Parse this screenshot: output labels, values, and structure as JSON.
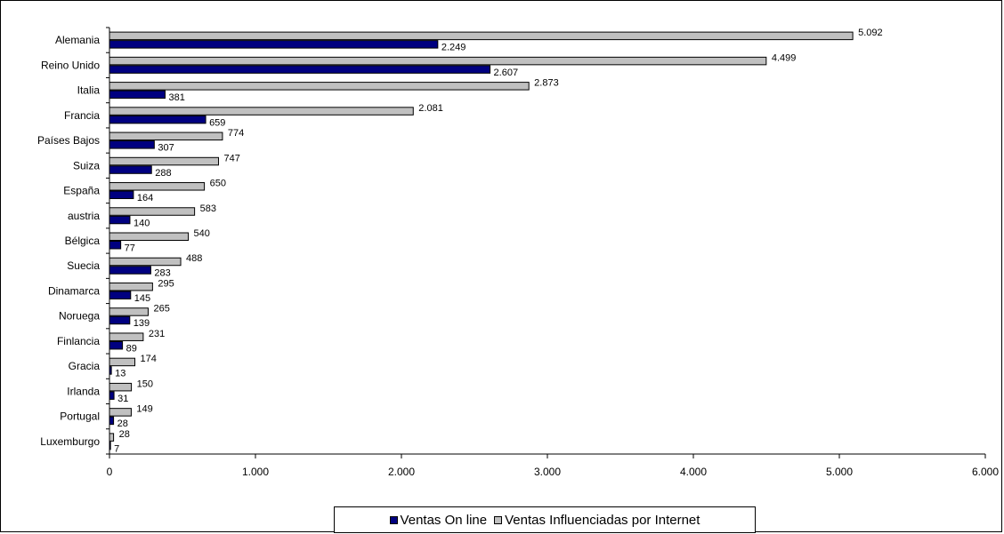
{
  "chart_data": {
    "type": "bar",
    "orientation": "horizontal",
    "categories": [
      "Alemania",
      "Reino Unido",
      "Italia",
      "Francia",
      "Países Bajos",
      "Suiza",
      "España",
      "austria",
      "Bélgica",
      "Suecia",
      "Dinamarca",
      "Noruega",
      "Finlancia",
      "Gracia",
      "Irlanda",
      "Portugal",
      "Luxemburgo"
    ],
    "series": [
      {
        "name": "Ventas Influenciadas por Internet",
        "color": "#c0c0c0",
        "values": [
          5092,
          4499,
          2873,
          2081,
          774,
          747,
          650,
          583,
          540,
          488,
          295,
          265,
          231,
          174,
          150,
          149,
          28
        ],
        "labels": [
          "5.092",
          "4.499",
          "2.873",
          "2.081",
          "774",
          "747",
          "650",
          "583",
          "540",
          "488",
          "295",
          "265",
          "231",
          "174",
          "150",
          "149",
          "28"
        ]
      },
      {
        "name": "Ventas On line",
        "color": "#000080",
        "values": [
          2249,
          2607,
          381,
          659,
          307,
          288,
          164,
          140,
          77,
          283,
          145,
          139,
          89,
          13,
          31,
          28,
          7
        ],
        "labels": [
          "2.249",
          "2.607",
          "381",
          "659",
          "307",
          "288",
          "164",
          "140",
          "77",
          "283",
          "145",
          "139",
          "89",
          "13",
          "31",
          "28",
          "7"
        ]
      }
    ],
    "xlim": [
      0,
      6000
    ],
    "x_ticks": [
      0,
      1000,
      2000,
      3000,
      4000,
      5000,
      6000
    ],
    "x_tick_labels": [
      "0",
      "1.000",
      "2.000",
      "3.000",
      "4.000",
      "5.000",
      "6.000"
    ],
    "grid": false,
    "legend_position": "bottom-center"
  },
  "legend": {
    "items": [
      {
        "label": "Ventas On line",
        "color": "#000080"
      },
      {
        "label": "Ventas Influenciadas por Internet",
        "color": "#c0c0c0"
      }
    ]
  }
}
